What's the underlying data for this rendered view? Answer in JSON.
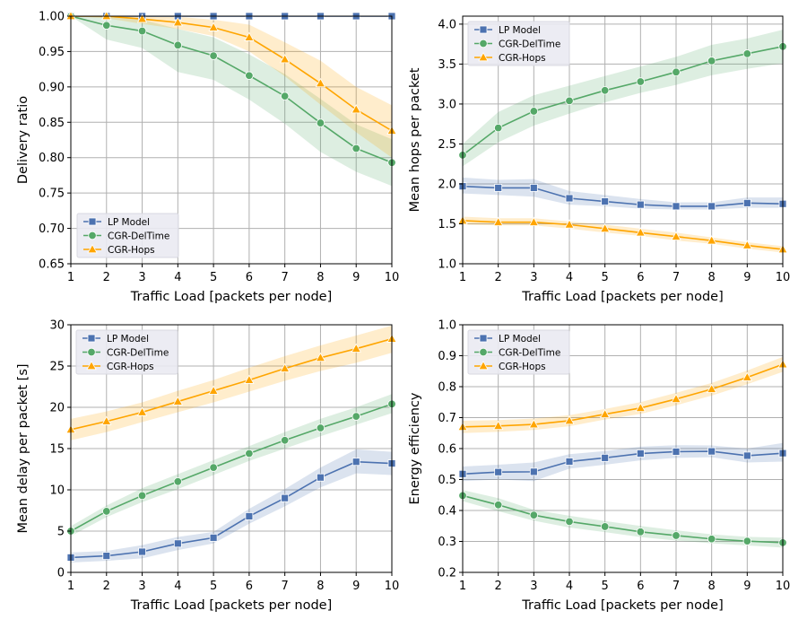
{
  "colors": {
    "lp": "#4c72b0",
    "del": "#55a868",
    "hops": "#ffa500",
    "grid": "#b0b0b0"
  },
  "chart_data": [
    {
      "type": "line",
      "xlabel": "Traffic Load [packets per node]",
      "ylabel": "Delivery ratio",
      "x": [
        1,
        2,
        3,
        4,
        5,
        6,
        7,
        8,
        9,
        10
      ],
      "xticks": [
        "1",
        "2",
        "3",
        "4",
        "5",
        "6",
        "7",
        "8",
        "9",
        "10"
      ],
      "ylim": [
        0.65,
        1.0
      ],
      "yticks": [
        "0.65",
        "0.70",
        "0.75",
        "0.80",
        "0.85",
        "0.90",
        "0.95",
        "1.00"
      ],
      "legend": "lower-left",
      "grid": true,
      "series": [
        {
          "name": "LP Model",
          "marker": "square",
          "color": "#4c72b0",
          "values": [
            1.0,
            1.0,
            1.0,
            1.0,
            1.0,
            1.0,
            1.0,
            1.0,
            1.0,
            1.0
          ],
          "lower": [
            1.0,
            1.0,
            1.0,
            1.0,
            1.0,
            1.0,
            1.0,
            1.0,
            1.0,
            1.0
          ],
          "upper": [
            1.0,
            1.0,
            1.0,
            1.0,
            1.0,
            1.0,
            1.0,
            1.0,
            1.0,
            1.0
          ]
        },
        {
          "name": "CGR-DelTime",
          "marker": "circle",
          "color": "#55a868",
          "values": [
            1.0,
            0.987,
            0.979,
            0.959,
            0.944,
            0.916,
            0.887,
            0.849,
            0.813,
            0.793
          ],
          "lower": [
            1.0,
            0.967,
            0.955,
            0.921,
            0.91,
            0.882,
            0.848,
            0.808,
            0.78,
            0.76
          ],
          "upper": [
            1.0,
            1.0,
            0.995,
            0.982,
            0.97,
            0.946,
            0.918,
            0.883,
            0.847,
            0.826
          ]
        },
        {
          "name": "CGR-Hops",
          "marker": "triangle",
          "color": "#ffa500",
          "values": [
            1.0,
            1.0,
            0.996,
            0.991,
            0.984,
            0.97,
            0.939,
            0.905,
            0.868,
            0.838
          ],
          "lower": [
            1.0,
            0.997,
            0.989,
            0.982,
            0.972,
            0.95,
            0.915,
            0.875,
            0.836,
            0.8
          ],
          "upper": [
            1.0,
            1.0,
            1.0,
            0.999,
            0.995,
            0.988,
            0.963,
            0.937,
            0.9,
            0.874
          ]
        }
      ]
    },
    {
      "type": "line",
      "xlabel": "Traffic Load [packets per node]",
      "ylabel": "Mean hops per packet",
      "x": [
        1,
        2,
        3,
        4,
        5,
        6,
        7,
        8,
        9,
        10
      ],
      "xticks": [
        "1",
        "2",
        "3",
        "4",
        "5",
        "6",
        "7",
        "8",
        "9",
        "10"
      ],
      "ylim": [
        1.0,
        4.1
      ],
      "yticks": [
        "1.0",
        "1.5",
        "2.0",
        "2.5",
        "3.0",
        "3.5",
        "4.0"
      ],
      "legend": "top-left",
      "grid": true,
      "series": [
        {
          "name": "LP Model",
          "marker": "square",
          "color": "#4c72b0",
          "values": [
            1.97,
            1.95,
            1.95,
            1.82,
            1.78,
            1.74,
            1.72,
            1.72,
            1.76,
            1.75
          ],
          "lower": [
            1.88,
            1.86,
            1.84,
            1.74,
            1.72,
            1.69,
            1.68,
            1.68,
            1.7,
            1.7
          ],
          "upper": [
            2.08,
            2.05,
            2.06,
            1.91,
            1.86,
            1.81,
            1.77,
            1.77,
            1.83,
            1.83
          ]
        },
        {
          "name": "CGR-DelTime",
          "marker": "circle",
          "color": "#55a868",
          "values": [
            2.36,
            2.7,
            2.91,
            3.04,
            3.17,
            3.28,
            3.4,
            3.54,
            3.63,
            3.72
          ],
          "lower": [
            2.22,
            2.52,
            2.73,
            2.88,
            3.02,
            3.14,
            3.24,
            3.36,
            3.44,
            3.51
          ],
          "upper": [
            2.5,
            2.9,
            3.11,
            3.23,
            3.35,
            3.47,
            3.59,
            3.74,
            3.82,
            3.93
          ]
        },
        {
          "name": "CGR-Hops",
          "marker": "triangle",
          "color": "#ffa500",
          "values": [
            1.54,
            1.52,
            1.52,
            1.49,
            1.44,
            1.39,
            1.34,
            1.29,
            1.23,
            1.18
          ],
          "lower": [
            1.49,
            1.48,
            1.48,
            1.44,
            1.39,
            1.35,
            1.29,
            1.25,
            1.19,
            1.14
          ],
          "upper": [
            1.59,
            1.57,
            1.57,
            1.53,
            1.49,
            1.44,
            1.39,
            1.33,
            1.27,
            1.22
          ]
        }
      ]
    },
    {
      "type": "line",
      "xlabel": "Traffic Load [packets per node]",
      "ylabel": "Mean delay per packet [s]",
      "x": [
        1,
        2,
        3,
        4,
        5,
        6,
        7,
        8,
        9,
        10
      ],
      "xticks": [
        "1",
        "2",
        "3",
        "4",
        "5",
        "6",
        "7",
        "8",
        "9",
        "10"
      ],
      "ylim": [
        0,
        30
      ],
      "yticks": [
        "0",
        "5",
        "10",
        "15",
        "20",
        "25",
        "30"
      ],
      "legend": "top-left",
      "grid": true,
      "series": [
        {
          "name": "LP Model",
          "marker": "square",
          "color": "#4c72b0",
          "values": [
            1.8,
            2.0,
            2.5,
            3.5,
            4.2,
            6.8,
            9.0,
            11.5,
            13.4,
            13.2
          ],
          "lower": [
            1.2,
            1.4,
            1.7,
            2.7,
            3.5,
            5.9,
            8.0,
            10.3,
            12.0,
            11.8
          ],
          "upper": [
            2.4,
            2.6,
            3.3,
            4.3,
            4.9,
            7.7,
            10.1,
            12.7,
            14.9,
            14.6
          ]
        },
        {
          "name": "CGR-DelTime",
          "marker": "circle",
          "color": "#55a868",
          "values": [
            5.0,
            7.4,
            9.3,
            11.0,
            12.7,
            14.4,
            16.0,
            17.5,
            18.9,
            20.4
          ],
          "lower": [
            4.4,
            6.7,
            8.5,
            10.1,
            11.8,
            13.5,
            15.0,
            16.5,
            17.9,
            19.3
          ],
          "upper": [
            5.6,
            8.1,
            10.2,
            11.9,
            13.6,
            15.3,
            17.0,
            18.6,
            20.0,
            21.6
          ]
        },
        {
          "name": "CGR-Hops",
          "marker": "triangle",
          "color": "#ffa500",
          "values": [
            17.3,
            18.3,
            19.4,
            20.7,
            22.0,
            23.3,
            24.7,
            26.0,
            27.1,
            28.3
          ],
          "lower": [
            16.0,
            17.0,
            18.2,
            19.4,
            20.6,
            21.9,
            23.2,
            24.4,
            25.4,
            26.6
          ],
          "upper": [
            18.6,
            19.5,
            20.6,
            22.0,
            23.3,
            24.8,
            26.2,
            27.5,
            28.7,
            29.9
          ]
        }
      ]
    },
    {
      "type": "line",
      "xlabel": "Traffic Load [packets per node]",
      "ylabel": "Energy efficiency",
      "x": [
        1,
        2,
        3,
        4,
        5,
        6,
        7,
        8,
        9,
        10
      ],
      "xticks": [
        "1",
        "2",
        "3",
        "4",
        "5",
        "6",
        "7",
        "8",
        "9",
        "10"
      ],
      "ylim": [
        0.2,
        1.0
      ],
      "yticks": [
        "0.2",
        "0.3",
        "0.4",
        "0.5",
        "0.6",
        "0.7",
        "0.8",
        "0.9",
        "1.0"
      ],
      "legend": "top-left",
      "grid": true,
      "series": [
        {
          "name": "LP Model",
          "marker": "square",
          "color": "#4c72b0",
          "values": [
            0.518,
            0.524,
            0.525,
            0.558,
            0.57,
            0.584,
            0.59,
            0.591,
            0.577,
            0.585
          ],
          "lower": [
            0.495,
            0.5,
            0.495,
            0.535,
            0.548,
            0.562,
            0.57,
            0.572,
            0.555,
            0.558
          ],
          "upper": [
            0.542,
            0.548,
            0.555,
            0.582,
            0.592,
            0.606,
            0.611,
            0.61,
            0.6,
            0.618
          ]
        },
        {
          "name": "CGR-DelTime",
          "marker": "circle",
          "color": "#55a868",
          "values": [
            0.448,
            0.418,
            0.385,
            0.364,
            0.348,
            0.331,
            0.319,
            0.308,
            0.301,
            0.296
          ],
          "lower": [
            0.43,
            0.398,
            0.367,
            0.345,
            0.33,
            0.314,
            0.303,
            0.294,
            0.287,
            0.28
          ],
          "upper": [
            0.466,
            0.44,
            0.402,
            0.383,
            0.366,
            0.35,
            0.336,
            0.323,
            0.315,
            0.312
          ]
        },
        {
          "name": "CGR-Hops",
          "marker": "triangle",
          "color": "#ffa500",
          "values": [
            0.67,
            0.673,
            0.678,
            0.69,
            0.711,
            0.731,
            0.76,
            0.792,
            0.83,
            0.872
          ],
          "lower": [
            0.65,
            0.654,
            0.66,
            0.672,
            0.694,
            0.712,
            0.74,
            0.771,
            0.808,
            0.848
          ],
          "upper": [
            0.69,
            0.692,
            0.697,
            0.708,
            0.728,
            0.75,
            0.78,
            0.812,
            0.852,
            0.896
          ]
        }
      ]
    }
  ]
}
